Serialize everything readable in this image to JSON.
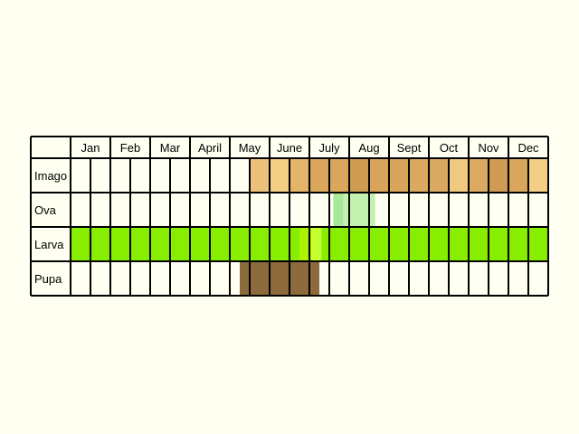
{
  "months": [
    "Jan",
    "Feb",
    "Mar",
    "April",
    "May",
    "June",
    "July",
    "Aug",
    "Sept",
    "Oct",
    "Nov",
    "Dec"
  ],
  "rows": [
    {
      "label": "Imago",
      "spans": [
        {
          "from": 9,
          "to": 10,
          "color": "#ecc27a"
        },
        {
          "from": 10,
          "to": 11,
          "color": "#f3cf86"
        },
        {
          "from": 11,
          "to": 12,
          "color": "#e4b468"
        },
        {
          "from": 12,
          "to": 14,
          "color": "#d9a65c"
        },
        {
          "from": 14,
          "to": 15,
          "color": "#cf9a52"
        },
        {
          "from": 15,
          "to": 17,
          "color": "#d8a45a"
        },
        {
          "from": 17,
          "to": 19,
          "color": "#dba860"
        },
        {
          "from": 19,
          "to": 20,
          "color": "#f0c980"
        },
        {
          "from": 20,
          "to": 21,
          "color": "#dca961"
        },
        {
          "from": 21,
          "to": 22,
          "color": "#cf9a52"
        },
        {
          "from": 22,
          "to": 23,
          "color": "#d9a65c"
        },
        {
          "from": 23,
          "to": 24,
          "color": "#f3cf86"
        }
      ]
    },
    {
      "label": "Ova",
      "spans": [
        {
          "from": 13.2,
          "to": 13.7,
          "color": "#a8e89a"
        },
        {
          "from": 13.7,
          "to": 15.3,
          "color": "#c4f0b0"
        }
      ]
    },
    {
      "label": "Larva",
      "spans": [
        {
          "from": 0,
          "to": 11.5,
          "color": "#88ee00"
        },
        {
          "from": 11.5,
          "to": 12.1,
          "color": "#aaf200"
        },
        {
          "from": 12.1,
          "to": 12.6,
          "color": "#c8ff2e"
        },
        {
          "from": 12.6,
          "to": 24,
          "color": "#88ee00"
        }
      ]
    },
    {
      "label": "Pupa",
      "spans": [
        {
          "from": 8.5,
          "to": 12.5,
          "color": "#8c6a3c"
        }
      ]
    }
  ]
}
